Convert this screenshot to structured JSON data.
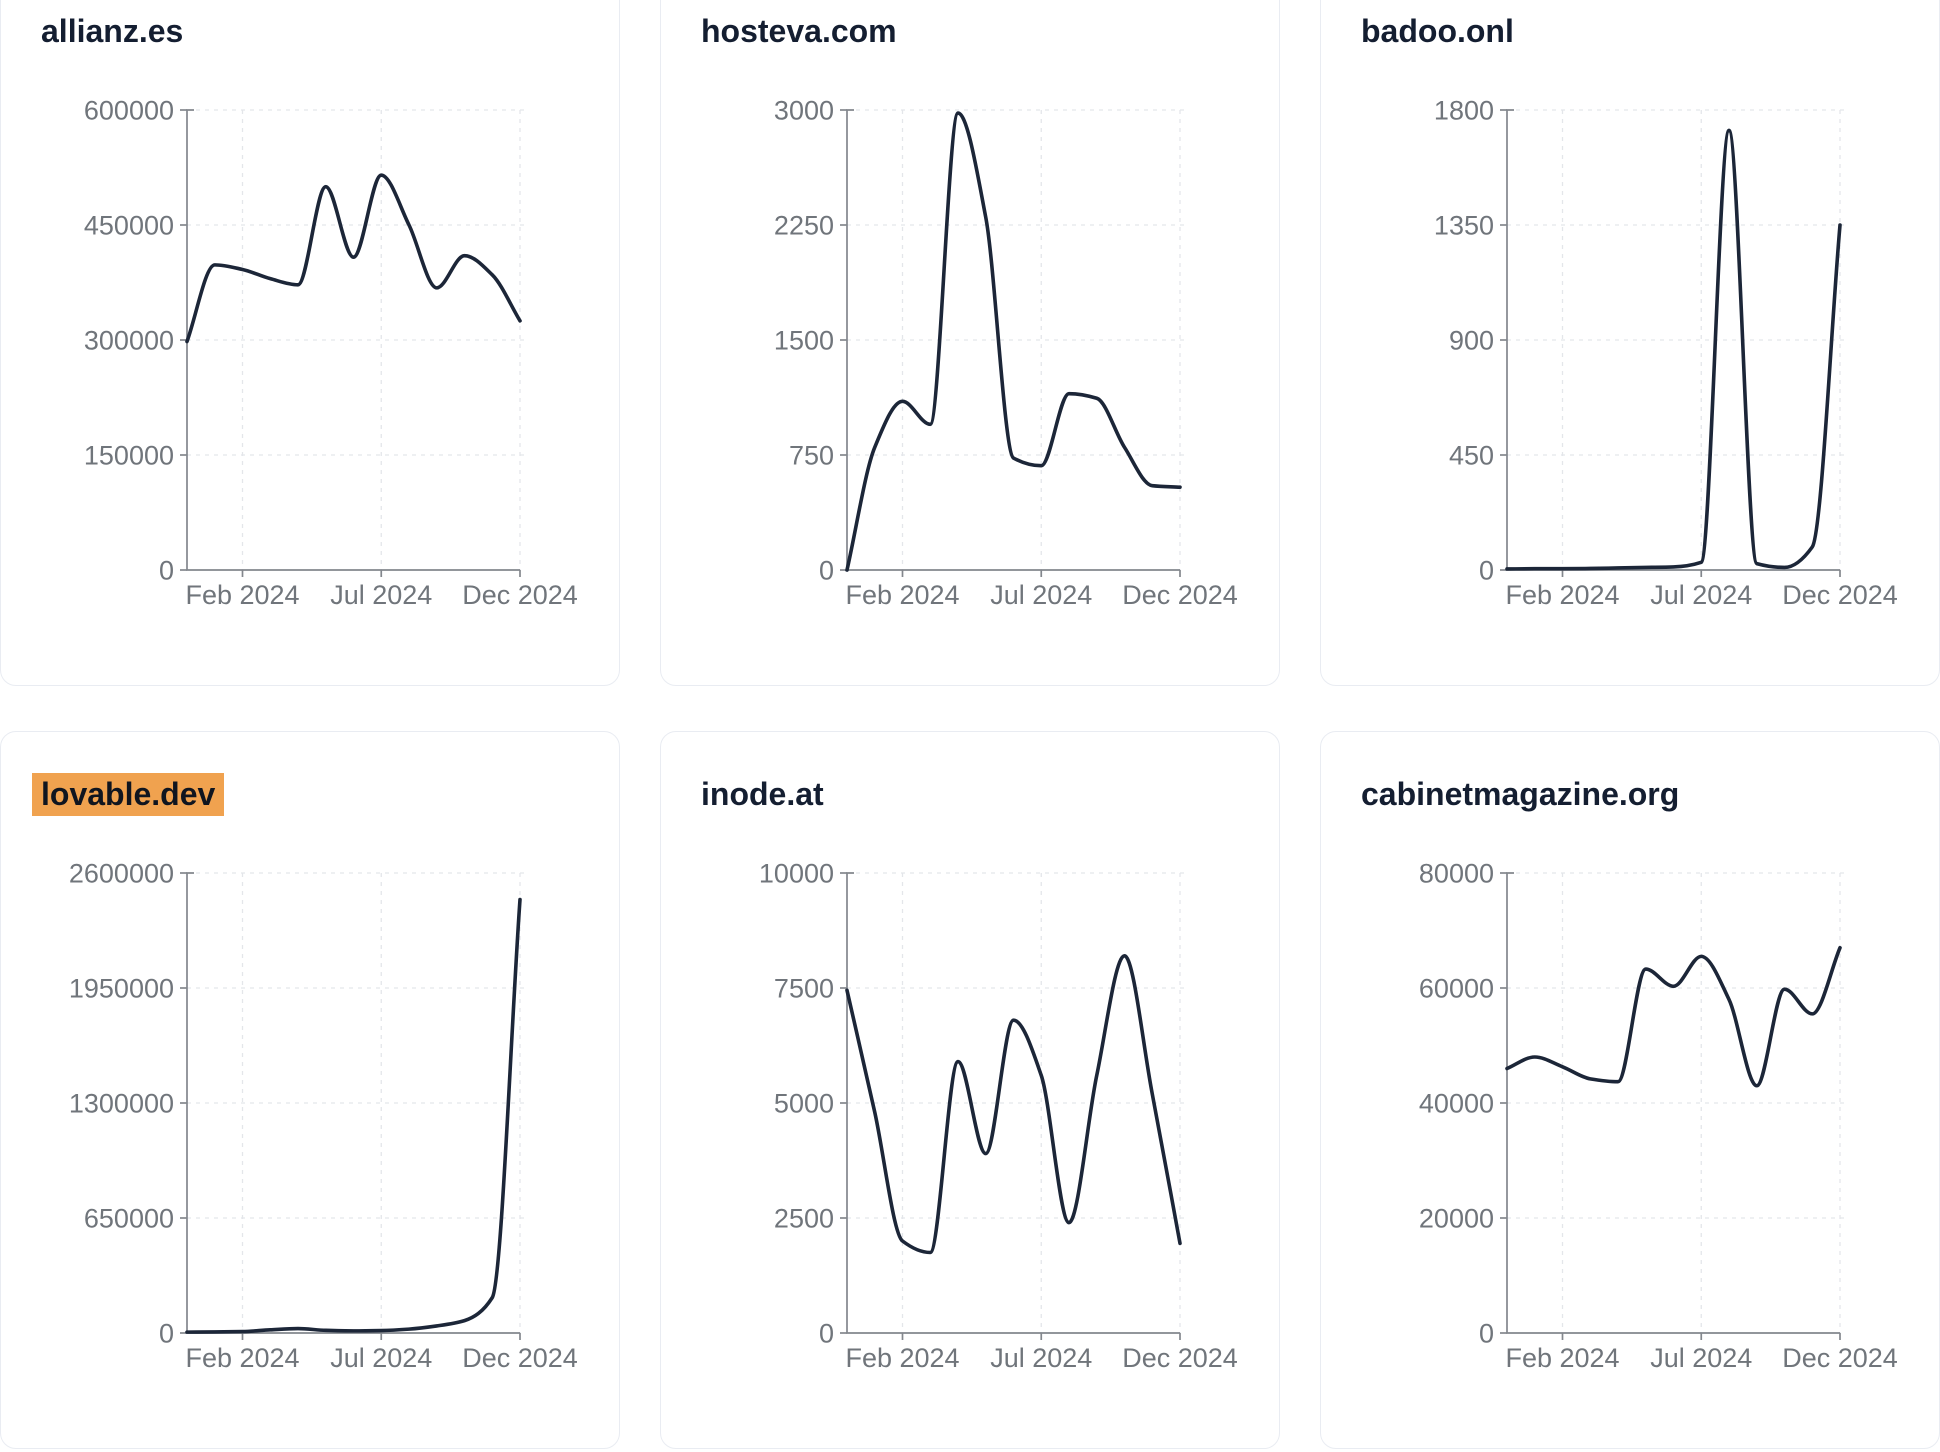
{
  "page": {
    "description": "Grid of six small-multiple traffic line charts, one per domain, monthly values Dec 2023 through Dec 2024",
    "x_tick_labels": [
      "Feb 2024",
      "Jul 2024",
      "Dec 2024"
    ],
    "x_tick_month_indices": [
      2,
      7,
      12
    ],
    "months": [
      "Dec 2023",
      "Jan 2024",
      "Feb 2024",
      "Mar 2024",
      "Apr 2024",
      "May 2024",
      "Jun 2024",
      "Jul 2024",
      "Aug 2024",
      "Sep 2024",
      "Oct 2024",
      "Nov 2024",
      "Dec 2024"
    ]
  },
  "colors": {
    "line": "#1c2638",
    "title_text": "#141e31",
    "tick_label": "#70757b",
    "axis": "#83878d",
    "grid": "#e4e6ea",
    "card_border": "#e9ecf2",
    "card_bg": "#ffffff",
    "page_bg": "#ffffff",
    "highlight_bg": "#f0a24f",
    "highlight_text": "#10151f"
  },
  "chart_data": [
    {
      "type": "line",
      "title": "allianz.es",
      "title_highlighted": false,
      "ylim": [
        0,
        600000
      ],
      "y_ticks": [
        0,
        150000,
        300000,
        450000,
        600000
      ],
      "x": [
        "Dec 2023",
        "Jan 2024",
        "Feb 2024",
        "Mar 2024",
        "Apr 2024",
        "May 2024",
        "Jun 2024",
        "Jul 2024",
        "Aug 2024",
        "Sep 2024",
        "Oct 2024",
        "Nov 2024",
        "Dec 2024"
      ],
      "x_tick_labels": [
        "Feb 2024",
        "Jul 2024",
        "Dec 2024"
      ],
      "values": [
        298000,
        398000,
        392000,
        380000,
        372000,
        500000,
        408000,
        515000,
        450000,
        368000,
        410000,
        385000,
        325000
      ]
    },
    {
      "type": "line",
      "title": "hosteva.com",
      "title_highlighted": false,
      "ylim": [
        0,
        3000
      ],
      "y_ticks": [
        0,
        750,
        1500,
        2250,
        3000
      ],
      "x": [
        "Dec 2023",
        "Jan 2024",
        "Feb 2024",
        "Mar 2024",
        "Apr 2024",
        "May 2024",
        "Jun 2024",
        "Jul 2024",
        "Aug 2024",
        "Sep 2024",
        "Oct 2024",
        "Nov 2024",
        "Dec 2024"
      ],
      "x_tick_labels": [
        "Feb 2024",
        "Jul 2024",
        "Dec 2024"
      ],
      "values": [
        0,
        800,
        1100,
        950,
        2980,
        2300,
        730,
        680,
        1150,
        1120,
        800,
        550,
        540
      ]
    },
    {
      "type": "line",
      "title": "badoo.onl",
      "title_highlighted": false,
      "ylim": [
        0,
        1800
      ],
      "y_ticks": [
        0,
        450,
        900,
        1350,
        1800
      ],
      "x": [
        "Dec 2023",
        "Jan 2024",
        "Feb 2024",
        "Mar 2024",
        "Apr 2024",
        "May 2024",
        "Jun 2024",
        "Jul 2024",
        "Aug 2024",
        "Sep 2024",
        "Oct 2024",
        "Nov 2024",
        "Dec 2024"
      ],
      "x_tick_labels": [
        "Feb 2024",
        "Jul 2024",
        "Dec 2024"
      ],
      "values": [
        4,
        5,
        5,
        6,
        8,
        10,
        12,
        30,
        1720,
        25,
        10,
        90,
        1350
      ]
    },
    {
      "type": "line",
      "title": "lovable.dev",
      "title_highlighted": true,
      "ylim": [
        0,
        2600000
      ],
      "y_ticks": [
        0,
        650000,
        1300000,
        1950000,
        2600000
      ],
      "x": [
        "Dec 2023",
        "Jan 2024",
        "Feb 2024",
        "Mar 2024",
        "Apr 2024",
        "May 2024",
        "Jun 2024",
        "Jul 2024",
        "Aug 2024",
        "Sep 2024",
        "Oct 2024",
        "Nov 2024",
        "Dec 2024"
      ],
      "x_tick_labels": [
        "Feb 2024",
        "Jul 2024",
        "Dec 2024"
      ],
      "values": [
        5000,
        6000,
        8000,
        18000,
        25000,
        15000,
        12000,
        14000,
        22000,
        40000,
        70000,
        200000,
        2450000
      ]
    },
    {
      "type": "line",
      "title": "inode.at",
      "title_highlighted": false,
      "ylim": [
        0,
        10000
      ],
      "y_ticks": [
        0,
        2500,
        5000,
        7500,
        10000
      ],
      "x": [
        "Dec 2023",
        "Jan 2024",
        "Feb 2024",
        "Mar 2024",
        "Apr 2024",
        "May 2024",
        "Jun 2024",
        "Jul 2024",
        "Aug 2024",
        "Sep 2024",
        "Oct 2024",
        "Nov 2024",
        "Dec 2024"
      ],
      "x_tick_labels": [
        "Feb 2024",
        "Jul 2024",
        "Dec 2024"
      ],
      "values": [
        7450,
        4800,
        2000,
        1750,
        5900,
        3900,
        6800,
        5600,
        2400,
        5600,
        8200,
        5200,
        1950
      ]
    },
    {
      "type": "line",
      "title": "cabinetmagazine.org",
      "title_highlighted": false,
      "ylim": [
        0,
        80000
      ],
      "y_ticks": [
        0,
        20000,
        40000,
        60000,
        80000
      ],
      "x": [
        "Dec 2023",
        "Jan 2024",
        "Feb 2024",
        "Mar 2024",
        "Apr 2024",
        "May 2024",
        "Jun 2024",
        "Jul 2024",
        "Aug 2024",
        "Sep 2024",
        "Oct 2024",
        "Nov 2024",
        "Dec 2024"
      ],
      "x_tick_labels": [
        "Feb 2024",
        "Jul 2024",
        "Dec 2024"
      ],
      "values": [
        46000,
        48000,
        46300,
        44200,
        43700,
        63300,
        60300,
        65500,
        58000,
        43000,
        59800,
        55500,
        67000
      ]
    }
  ]
}
